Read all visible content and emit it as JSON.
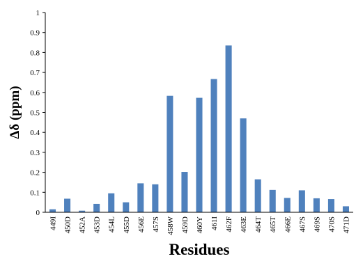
{
  "chart_data": {
    "type": "bar",
    "title": "",
    "xlabel": "Residues",
    "ylabel": "Δδ (ppm)",
    "ylim": [
      0,
      1
    ],
    "yticks": [
      "0",
      "0.1",
      "0.2",
      "0.3",
      "0.4",
      "0.5",
      "0.6",
      "0.7",
      "0.8",
      "0.9",
      "1"
    ],
    "grid": false,
    "bar_color": "#4f81bd",
    "categories": [
      "449I",
      "450D",
      "452A",
      "453D",
      "454L",
      "455D",
      "456E",
      "457S",
      "458W",
      "459D",
      "460Y",
      "461I",
      "462F",
      "463E",
      "464T",
      "465T",
      "466E",
      "467S",
      "469S",
      "470S",
      "471D"
    ],
    "values": [
      0.015,
      0.068,
      0.008,
      0.042,
      0.095,
      0.05,
      0.145,
      0.14,
      0.583,
      0.202,
      0.573,
      0.667,
      0.835,
      0.47,
      0.165,
      0.112,
      0.072,
      0.11,
      0.07,
      0.066,
      0.03
    ]
  }
}
